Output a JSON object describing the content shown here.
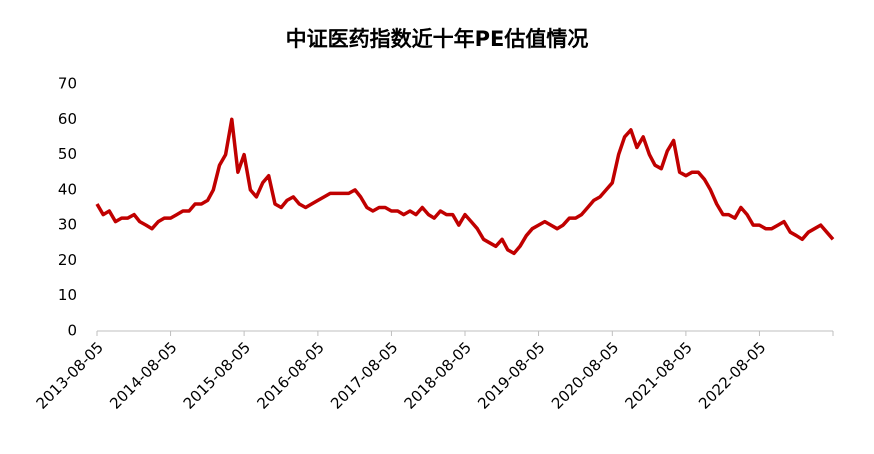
{
  "chart_data": {
    "type": "line",
    "title": "中证医药指数近十年PE估值情况",
    "x": [
      "2013-08-05",
      "2013-09-05",
      "2013-10-05",
      "2013-11-05",
      "2013-12-05",
      "2014-01-05",
      "2014-02-05",
      "2014-03-05",
      "2014-04-05",
      "2014-05-05",
      "2014-06-05",
      "2014-07-05",
      "2014-08-05",
      "2014-09-05",
      "2014-10-05",
      "2014-11-05",
      "2014-12-05",
      "2015-01-05",
      "2015-02-05",
      "2015-03-05",
      "2015-04-05",
      "2015-05-05",
      "2015-06-05",
      "2015-07-05",
      "2015-08-05",
      "2015-09-05",
      "2015-10-05",
      "2015-11-05",
      "2015-12-05",
      "2016-01-05",
      "2016-02-05",
      "2016-03-05",
      "2016-04-05",
      "2016-05-05",
      "2016-06-05",
      "2016-07-05",
      "2016-08-05",
      "2016-09-05",
      "2016-10-05",
      "2016-11-05",
      "2016-12-05",
      "2017-01-05",
      "2017-02-05",
      "2017-03-05",
      "2017-04-05",
      "2017-05-05",
      "2017-06-05",
      "2017-07-05",
      "2017-08-05",
      "2017-09-05",
      "2017-10-05",
      "2017-11-05",
      "2017-12-05",
      "2018-01-05",
      "2018-02-05",
      "2018-03-05",
      "2018-04-05",
      "2018-05-05",
      "2018-06-05",
      "2018-07-05",
      "2018-08-05",
      "2018-09-05",
      "2018-10-05",
      "2018-11-05",
      "2018-12-05",
      "2019-01-05",
      "2019-02-05",
      "2019-03-05",
      "2019-04-05",
      "2019-05-05",
      "2019-06-05",
      "2019-07-05",
      "2019-08-05",
      "2019-09-05",
      "2019-10-05",
      "2019-11-05",
      "2019-12-05",
      "2020-01-05",
      "2020-02-05",
      "2020-03-05",
      "2020-04-05",
      "2020-05-05",
      "2020-06-05",
      "2020-07-05",
      "2020-08-05",
      "2020-09-05",
      "2020-10-05",
      "2020-11-05",
      "2020-12-05",
      "2021-01-05",
      "2021-02-05",
      "2021-03-05",
      "2021-04-05",
      "2021-05-05",
      "2021-06-05",
      "2021-07-05",
      "2021-08-05",
      "2021-09-05",
      "2021-10-05",
      "2021-11-05",
      "2021-12-05",
      "2022-01-05",
      "2022-02-05",
      "2022-03-05",
      "2022-04-05",
      "2022-05-05",
      "2022-06-05",
      "2022-07-05",
      "2022-08-05",
      "2022-09-05",
      "2022-10-05",
      "2022-11-05",
      "2022-12-05",
      "2023-01-05",
      "2023-02-05",
      "2023-03-05",
      "2023-04-05",
      "2023-05-05",
      "2023-06-05",
      "2023-07-05",
      "2023-08-05"
    ],
    "series": [
      {
        "name": "PE",
        "color": "#c00000",
        "values": [
          36,
          33,
          34,
          31,
          32,
          32,
          33,
          31,
          30,
          29,
          31,
          32,
          32,
          33,
          34,
          34,
          36,
          36,
          37,
          40,
          47,
          50,
          60,
          45,
          50,
          40,
          38,
          42,
          44,
          36,
          35,
          37,
          38,
          36,
          35,
          36,
          37,
          38,
          39,
          39,
          39,
          39,
          40,
          38,
          35,
          34,
          35,
          35,
          34,
          34,
          33,
          34,
          33,
          35,
          33,
          32,
          34,
          33,
          33,
          30,
          33,
          31,
          29,
          26,
          25,
          24,
          26,
          23,
          22,
          24,
          27,
          29,
          30,
          31,
          30,
          29,
          30,
          32,
          32,
          33,
          35,
          37,
          38,
          40,
          42,
          50,
          55,
          57,
          52,
          55,
          50,
          47,
          46,
          51,
          54,
          45,
          44,
          45,
          45,
          43,
          40,
          36,
          33,
          33,
          32,
          35,
          33,
          30,
          30,
          29,
          29,
          30,
          31,
          28,
          27,
          26,
          28,
          29,
          30,
          28,
          26
        ]
      }
    ],
    "xlim": [
      "2013-08-05",
      "2023-08-05"
    ],
    "xticks": [
      "2013-08-05",
      "2014-08-05",
      "2015-08-05",
      "2016-08-05",
      "2017-08-05",
      "2018-08-05",
      "2019-08-05",
      "2020-08-05",
      "2021-08-05",
      "2022-08-05"
    ],
    "ylim": [
      0,
      70
    ],
    "yticks": [
      0,
      10,
      20,
      30,
      40,
      50,
      60,
      70
    ]
  }
}
